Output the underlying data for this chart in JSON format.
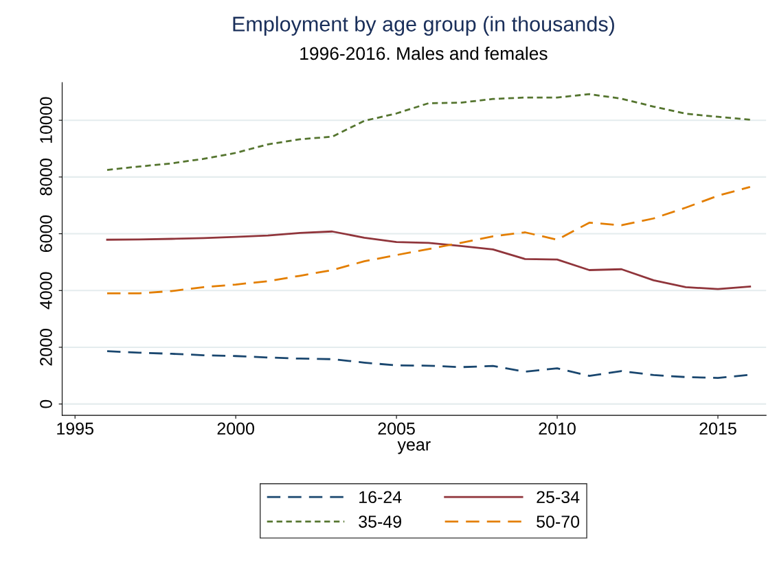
{
  "chart_data": {
    "type": "line",
    "title": "Employment by age group (in thousands)",
    "subtitle": "1996-2016. Males and females",
    "xlabel": "year",
    "x": [
      1996,
      1997,
      1998,
      1999,
      2000,
      2001,
      2002,
      2003,
      2004,
      2005,
      2006,
      2007,
      2008,
      2009,
      2010,
      2011,
      2012,
      2013,
      2014,
      2015,
      2016
    ],
    "series": [
      {
        "name": "16-24",
        "color": "#1a476f",
        "line_style": "dashed",
        "values": [
          1860,
          1810,
          1770,
          1720,
          1690,
          1640,
          1600,
          1580,
          1460,
          1360,
          1350,
          1300,
          1340,
          1140,
          1260,
          990,
          1160,
          1020,
          950,
          920,
          1030
        ]
      },
      {
        "name": "25-34",
        "color": "#90353b",
        "line_style": "solid",
        "values": [
          5790,
          5800,
          5820,
          5850,
          5890,
          5940,
          6030,
          6080,
          5860,
          5710,
          5680,
          5570,
          5450,
          5110,
          5090,
          4720,
          4750,
          4360,
          4120,
          4050,
          4140
        ]
      },
      {
        "name": "35-49",
        "color": "#55752f",
        "line_style": "dotted",
        "values": [
          8250,
          8370,
          8480,
          8640,
          8850,
          9150,
          9330,
          9420,
          9980,
          10240,
          10600,
          10620,
          10750,
          10800,
          10800,
          10920,
          10760,
          10480,
          10230,
          10120,
          10020
        ]
      },
      {
        "name": "50-70",
        "color": "#e37e00",
        "line_style": "dashed",
        "values": [
          3900,
          3900,
          3980,
          4120,
          4210,
          4330,
          4520,
          4720,
          5030,
          5250,
          5460,
          5680,
          5910,
          6050,
          5790,
          6390,
          6300,
          6540,
          6920,
          7340,
          7650
        ]
      }
    ],
    "xlim": [
      1994.6,
      2016.5
    ],
    "ylim": [
      -400,
      11330
    ],
    "xticks": [
      1995,
      2000,
      2005,
      2010,
      2015
    ],
    "yticks": [
      0,
      2000,
      4000,
      6000,
      8000,
      10000
    ],
    "grid": "y",
    "legend": "bottom",
    "marker": "none"
  }
}
